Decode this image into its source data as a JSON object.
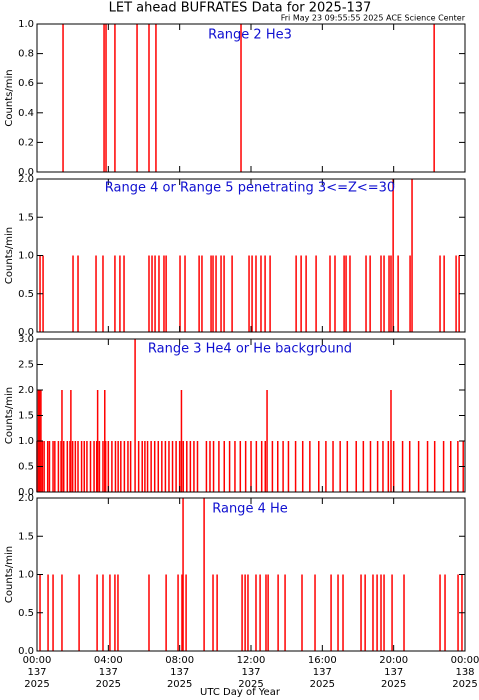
{
  "chart_data": [
    {
      "type": "spike",
      "title": "LET ahead BUFRATES Data for 2025-137",
      "subtitle": "Fri May 23 09:55:55 2025 ACE Science Center",
      "annotation": "Range 2 He3",
      "ylabel": "Counts/min",
      "color": "#ff0000",
      "xlim": [
        0,
        24
      ],
      "xticks": [
        0,
        4,
        8,
        12,
        16,
        20,
        24
      ],
      "ylim": [
        0,
        1
      ],
      "yticks": [
        {
          "value": 0,
          "label": "0.0"
        },
        {
          "value": 0.2,
          "label": "0.2"
        },
        {
          "value": 0.4,
          "label": "0.4"
        },
        {
          "value": 0.6,
          "label": "0.6"
        },
        {
          "value": 0.8,
          "label": "0.8"
        },
        {
          "value": 1,
          "label": "1.0"
        }
      ],
      "x": [
        1.46,
        3.76,
        3.87,
        4.37,
        5.61,
        6.28,
        6.67,
        11.44,
        22.27
      ],
      "values": [
        1,
        1,
        1,
        1,
        1,
        1,
        1,
        1,
        1
      ]
    },
    {
      "type": "spike",
      "annotation": "Range 4 or Range 5 penetrating 3<=Z<=30",
      "ylabel": "Counts/min",
      "color": "#ff0000",
      "xlim": [
        0,
        24
      ],
      "xticks": [
        0,
        4,
        8,
        12,
        16,
        20,
        24
      ],
      "ylim": [
        0,
        2
      ],
      "yticks": [
        {
          "value": 0,
          "label": "0.0"
        },
        {
          "value": 0.5,
          "label": "0.5"
        },
        {
          "value": 1,
          "label": "1.0"
        },
        {
          "value": 1.5,
          "label": "1.5"
        },
        {
          "value": 2,
          "label": "2.0"
        }
      ],
      "x": [
        0.17,
        0.34,
        2.02,
        2.3,
        3.31,
        3.7,
        4.37,
        4.65,
        4.88,
        6.28,
        6.45,
        6.62,
        6.84,
        7.12,
        7.24,
        8.02,
        8.3,
        9.09,
        9.25,
        9.76,
        9.87,
        10.04,
        10.32,
        10.49,
        10.94,
        11.89,
        12.06,
        12.28,
        12.56,
        12.79,
        13.07,
        14.53,
        14.81,
        15.09,
        15.65,
        16.43,
        16.71,
        17.22,
        17.33,
        17.55,
        18.45,
        18.68,
        19.29,
        19.46,
        19.74,
        19.85,
        19.97,
        20.25,
        20.92,
        21.03,
        22.6,
        22.83,
        23.5,
        23.67
      ],
      "values": [
        1,
        1,
        1,
        1,
        1,
        1,
        1,
        1,
        1,
        1,
        1,
        1,
        1,
        1,
        1,
        1,
        1,
        1,
        1,
        1,
        1,
        1,
        1,
        1,
        1,
        1,
        1,
        1,
        1,
        1,
        1,
        1,
        1,
        1,
        1,
        1,
        1,
        1,
        1,
        1,
        1,
        1,
        1,
        1,
        1,
        1,
        2,
        1,
        1,
        2,
        1,
        1,
        1,
        1
      ]
    },
    {
      "type": "spike",
      "annotation": "Range 3 He4 or He background",
      "ylabel": "Counts/min",
      "color": "#ff0000",
      "xlim": [
        0,
        24
      ],
      "xticks": [
        0,
        4,
        8,
        12,
        16,
        20,
        24
      ],
      "ylim": [
        0,
        3
      ],
      "yticks": [
        {
          "value": 0,
          "label": "0.0"
        },
        {
          "value": 0.5,
          "label": "0.5"
        },
        {
          "value": 1,
          "label": "1.0"
        },
        {
          "value": 1.5,
          "label": "1.5"
        },
        {
          "value": 2,
          "label": "2.0"
        },
        {
          "value": 2.5,
          "label": "2.5"
        },
        {
          "value": 3,
          "label": "3.0"
        }
      ],
      "x": [
        0.0,
        0.08,
        0.15,
        0.22,
        0.3,
        0.4,
        0.6,
        0.7,
        0.9,
        1.0,
        1.2,
        1.35,
        1.4,
        1.5,
        1.7,
        1.85,
        1.9,
        2.0,
        2.15,
        2.3,
        2.5,
        2.65,
        2.8,
        3.0,
        3.2,
        3.35,
        3.4,
        3.5,
        3.7,
        3.8,
        3.85,
        4.0,
        4.2,
        4.4,
        4.55,
        4.7,
        4.9,
        5.1,
        5.25,
        5.5,
        5.7,
        5.9,
        6.05,
        6.2,
        6.4,
        6.6,
        6.8,
        7.0,
        7.2,
        7.4,
        7.6,
        7.8,
        8.0,
        8.1,
        8.2,
        8.4,
        8.6,
        8.8,
        9.0,
        9.5,
        9.7,
        9.9,
        10.2,
        10.5,
        10.8,
        11.1,
        11.4,
        11.7,
        12.0,
        12.3,
        12.6,
        12.8,
        12.9,
        13.2,
        13.5,
        13.8,
        14.1,
        14.5,
        14.9,
        15.3,
        15.8,
        16.2,
        16.6,
        17.0,
        17.4,
        17.9,
        18.3,
        18.7,
        19.1,
        19.4,
        19.7,
        19.85,
        20.0,
        20.5,
        20.9,
        21.4,
        21.9,
        22.3,
        22.8,
        23.2,
        23.6,
        23.9
      ],
      "values": [
        1,
        2,
        2,
        2,
        1,
        1,
        1,
        1,
        1,
        1,
        1,
        1,
        2,
        1,
        1,
        1,
        2,
        1,
        1,
        1,
        1,
        1,
        1,
        1,
        1,
        1,
        2,
        1,
        1,
        2,
        1,
        1,
        1,
        1,
        1,
        1,
        1,
        1,
        1,
        3,
        1,
        1,
        1,
        1,
        1,
        1,
        1,
        1,
        1,
        1,
        1,
        1,
        1,
        2,
        1,
        1,
        1,
        1,
        1,
        1,
        1,
        1,
        1,
        1,
        1,
        1,
        1,
        1,
        1,
        1,
        1,
        1,
        2,
        1,
        1,
        1,
        1,
        1,
        1,
        1,
        1,
        1,
        1,
        1,
        1,
        1,
        1,
        1,
        1,
        1,
        1,
        2,
        1,
        1,
        1,
        1,
        1,
        1,
        1,
        1,
        1,
        1
      ]
    },
    {
      "type": "spike",
      "annotation": "Range 4 He",
      "ylabel": "Counts/min",
      "xlabel": "UTC Day of Year",
      "color": "#ff0000",
      "xlim": [
        0,
        24
      ],
      "xticks": [
        0,
        4,
        8,
        12,
        16,
        20,
        24
      ],
      "xtick_labels": [
        {
          "time": "00:00",
          "day": "137",
          "year": "2025"
        },
        {
          "time": "04:00",
          "day": "137",
          "year": "2025"
        },
        {
          "time": "08:00",
          "day": "137",
          "year": "2025"
        },
        {
          "time": "12:00",
          "day": "137",
          "year": "2025"
        },
        {
          "time": "16:00",
          "day": "137",
          "year": "2025"
        },
        {
          "time": "20:00",
          "day": "137",
          "year": "2025"
        },
        {
          "time": "00:00",
          "day": "138",
          "year": "2025"
        }
      ],
      "ylim": [
        0,
        2
      ],
      "yticks": [
        {
          "value": 0,
          "label": "0.0"
        },
        {
          "value": 0.5,
          "label": "0.5"
        },
        {
          "value": 1,
          "label": "1.0"
        },
        {
          "value": 1.5,
          "label": "1.5"
        },
        {
          "value": 2,
          "label": "2.0"
        }
      ],
      "x": [
        0.17,
        0.62,
        0.9,
        1.4,
        2.36,
        3.37,
        3.7,
        4.09,
        4.37,
        4.54,
        6.28,
        7.24,
        7.91,
        8.13,
        8.19,
        8.36,
        9.37,
        9.87,
        10.1,
        11.5,
        11.67,
        11.83,
        12.28,
        12.51,
        12.84,
        12.96,
        13.52,
        13.91,
        14.86,
        15.59,
        16.49,
        16.88,
        17.16,
        18.17,
        18.4,
        18.84,
        19.07,
        19.29,
        19.46,
        19.91,
        20.58,
        22.6,
        22.88,
        23.61,
        23.83
      ],
      "values": [
        1,
        1,
        1,
        1,
        1,
        1,
        1,
        1,
        1,
        1,
        1,
        1,
        1,
        1,
        2,
        1,
        2,
        1,
        1,
        1,
        1,
        1,
        1,
        1,
        1,
        1,
        1,
        1,
        1,
        1,
        1,
        1,
        1,
        1,
        1,
        1,
        1,
        1,
        1,
        1,
        1,
        1,
        1,
        1,
        1
      ]
    }
  ]
}
